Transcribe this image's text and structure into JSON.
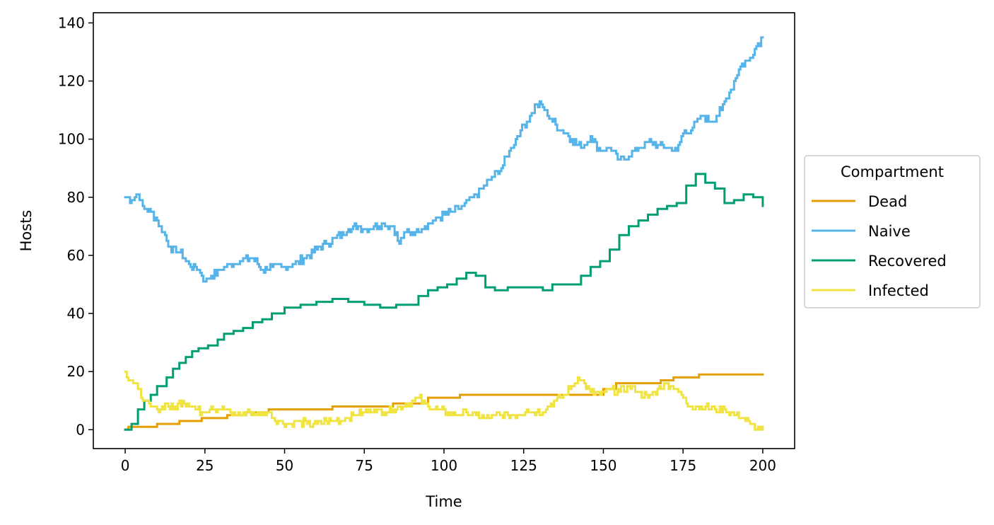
{
  "chart_data": {
    "type": "line",
    "xlabel": "Time",
    "ylabel": "Hosts",
    "xlim": [
      -10,
      210
    ],
    "ylim": [
      -6.5,
      143.5
    ],
    "xticks": [
      0,
      25,
      50,
      75,
      100,
      125,
      150,
      175,
      200
    ],
    "yticks": [
      0,
      20,
      40,
      60,
      80,
      100,
      120,
      140
    ],
    "legend": {
      "title": "Compartment",
      "placement": "right-center-outside"
    },
    "series": [
      {
        "name": "Dead",
        "color": "#E69F00",
        "step": true,
        "points": [
          [
            0,
            0
          ],
          [
            1,
            1
          ],
          [
            10,
            2
          ],
          [
            17,
            3
          ],
          [
            24,
            4
          ],
          [
            32,
            5
          ],
          [
            38,
            6
          ],
          [
            45,
            7
          ],
          [
            65,
            8
          ],
          [
            84,
            9
          ],
          [
            95,
            11
          ],
          [
            105,
            12
          ],
          [
            150,
            14
          ],
          [
            154,
            16
          ],
          [
            168,
            17
          ],
          [
            172,
            18
          ],
          [
            180,
            19
          ],
          [
            200,
            19
          ]
        ]
      },
      {
        "name": "Naive",
        "color": "#56B4E9",
        "step": false,
        "points": [
          [
            0,
            80
          ],
          [
            2,
            79
          ],
          [
            4,
            81
          ],
          [
            6,
            76
          ],
          [
            8,
            75
          ],
          [
            10,
            72
          ],
          [
            12,
            68
          ],
          [
            14,
            63
          ],
          [
            17,
            61
          ],
          [
            20,
            57
          ],
          [
            23,
            55
          ],
          [
            25,
            51
          ],
          [
            27,
            53
          ],
          [
            30,
            55
          ],
          [
            33,
            57
          ],
          [
            36,
            58
          ],
          [
            40,
            59
          ],
          [
            43,
            55
          ],
          [
            46,
            56
          ],
          [
            50,
            56
          ],
          [
            53,
            57
          ],
          [
            56,
            59
          ],
          [
            60,
            62
          ],
          [
            63,
            64
          ],
          [
            66,
            66
          ],
          [
            70,
            69
          ],
          [
            73,
            70
          ],
          [
            75,
            69
          ],
          [
            78,
            70
          ],
          [
            81,
            71
          ],
          [
            84,
            70
          ],
          [
            86,
            64
          ],
          [
            88,
            68
          ],
          [
            91,
            68
          ],
          [
            94,
            70
          ],
          [
            97,
            72
          ],
          [
            100,
            74
          ],
          [
            103,
            75
          ],
          [
            106,
            77
          ],
          [
            109,
            80
          ],
          [
            112,
            83
          ],
          [
            115,
            87
          ],
          [
            118,
            90
          ],
          [
            121,
            97
          ],
          [
            124,
            103
          ],
          [
            127,
            108
          ],
          [
            129,
            112
          ],
          [
            131,
            111
          ],
          [
            134,
            106
          ],
          [
            137,
            103
          ],
          [
            140,
            100
          ],
          [
            143,
            97
          ],
          [
            146,
            101
          ],
          [
            149,
            96
          ],
          [
            152,
            97
          ],
          [
            155,
            93
          ],
          [
            158,
            94
          ],
          [
            161,
            97
          ],
          [
            164,
            99
          ],
          [
            167,
            98
          ],
          [
            170,
            97
          ],
          [
            173,
            96
          ],
          [
            175,
            102
          ],
          [
            178,
            104
          ],
          [
            181,
            108
          ],
          [
            184,
            106
          ],
          [
            187,
            110
          ],
          [
            190,
            117
          ],
          [
            193,
            125
          ],
          [
            196,
            128
          ],
          [
            198,
            132
          ],
          [
            200,
            135
          ]
        ]
      },
      {
        "name": "Recovered",
        "color": "#009E73",
        "step": true,
        "points": [
          [
            0,
            0
          ],
          [
            2,
            2
          ],
          [
            4,
            7
          ],
          [
            6,
            10
          ],
          [
            8,
            12
          ],
          [
            10,
            15
          ],
          [
            13,
            18
          ],
          [
            15,
            21
          ],
          [
            17,
            23
          ],
          [
            19,
            25
          ],
          [
            21,
            27
          ],
          [
            23,
            28
          ],
          [
            26,
            29
          ],
          [
            29,
            31
          ],
          [
            31,
            33
          ],
          [
            34,
            34
          ],
          [
            37,
            35
          ],
          [
            40,
            37
          ],
          [
            43,
            38
          ],
          [
            46,
            40
          ],
          [
            50,
            42
          ],
          [
            55,
            43
          ],
          [
            60,
            44
          ],
          [
            65,
            45
          ],
          [
            70,
            44
          ],
          [
            75,
            43
          ],
          [
            80,
            42
          ],
          [
            85,
            43
          ],
          [
            89,
            43
          ],
          [
            92,
            46
          ],
          [
            95,
            48
          ],
          [
            98,
            49
          ],
          [
            101,
            50
          ],
          [
            104,
            52
          ],
          [
            107,
            54
          ],
          [
            110,
            53
          ],
          [
            113,
            49
          ],
          [
            116,
            48
          ],
          [
            120,
            49
          ],
          [
            125,
            49
          ],
          [
            128,
            49
          ],
          [
            131,
            48
          ],
          [
            134,
            50
          ],
          [
            137,
            50
          ],
          [
            140,
            50
          ],
          [
            143,
            53
          ],
          [
            146,
            56
          ],
          [
            149,
            58
          ],
          [
            152,
            62
          ],
          [
            155,
            67
          ],
          [
            158,
            70
          ],
          [
            161,
            72
          ],
          [
            164,
            74
          ],
          [
            167,
            76
          ],
          [
            170,
            77
          ],
          [
            173,
            78
          ],
          [
            176,
            84
          ],
          [
            179,
            88
          ],
          [
            182,
            85
          ],
          [
            185,
            83
          ],
          [
            188,
            78
          ],
          [
            191,
            79
          ],
          [
            194,
            81
          ],
          [
            197,
            80
          ],
          [
            200,
            77
          ]
        ]
      },
      {
        "name": "Infected",
        "color": "#F0E442",
        "step": false,
        "points": [
          [
            0,
            20
          ],
          [
            2,
            17
          ],
          [
            4,
            14
          ],
          [
            6,
            10
          ],
          [
            8,
            8
          ],
          [
            10,
            7
          ],
          [
            13,
            9
          ],
          [
            15,
            7
          ],
          [
            18,
            10
          ],
          [
            21,
            8
          ],
          [
            24,
            6
          ],
          [
            27,
            8
          ],
          [
            30,
            7
          ],
          [
            33,
            6
          ],
          [
            36,
            5
          ],
          [
            39,
            6
          ],
          [
            42,
            5
          ],
          [
            45,
            6
          ],
          [
            48,
            3
          ],
          [
            51,
            2
          ],
          [
            54,
            3
          ],
          [
            57,
            2
          ],
          [
            60,
            2
          ],
          [
            63,
            3
          ],
          [
            66,
            3
          ],
          [
            69,
            4
          ],
          [
            72,
            5
          ],
          [
            75,
            6
          ],
          [
            78,
            7
          ],
          [
            81,
            6
          ],
          [
            84,
            7
          ],
          [
            87,
            8
          ],
          [
            90,
            10
          ],
          [
            92,
            11
          ],
          [
            95,
            8
          ],
          [
            98,
            7
          ],
          [
            101,
            6
          ],
          [
            104,
            5
          ],
          [
            107,
            6
          ],
          [
            110,
            5
          ],
          [
            113,
            4
          ],
          [
            116,
            5
          ],
          [
            120,
            5
          ],
          [
            123,
            5
          ],
          [
            126,
            7
          ],
          [
            129,
            6
          ],
          [
            132,
            7
          ],
          [
            135,
            10
          ],
          [
            138,
            12
          ],
          [
            140,
            15
          ],
          [
            142,
            18
          ],
          [
            144,
            16
          ],
          [
            146,
            13
          ],
          [
            149,
            12
          ],
          [
            152,
            14
          ],
          [
            155,
            13
          ],
          [
            158,
            15
          ],
          [
            161,
            13
          ],
          [
            164,
            11
          ],
          [
            167,
            14
          ],
          [
            170,
            16
          ],
          [
            173,
            14
          ],
          [
            176,
            9
          ],
          [
            179,
            8
          ],
          [
            182,
            8
          ],
          [
            185,
            7
          ],
          [
            188,
            7
          ],
          [
            191,
            5
          ],
          [
            194,
            4
          ],
          [
            196,
            2
          ],
          [
            198,
            0
          ],
          [
            200,
            0
          ]
        ]
      }
    ]
  }
}
